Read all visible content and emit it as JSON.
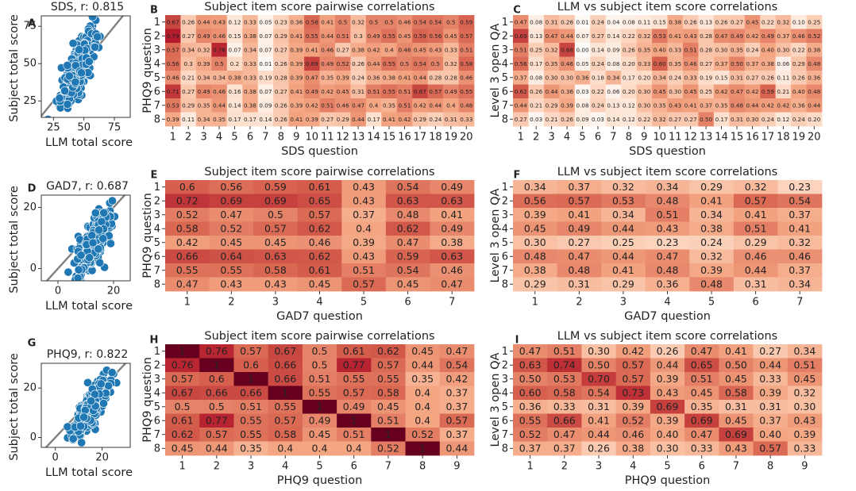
{
  "chart_data": [
    {
      "panel": "A",
      "type": "scatter",
      "title": "SDS, r: 0.815",
      "xlabel": "LLM total score",
      "ylabel": "Subject total score",
      "xlim": [
        15,
        88
      ],
      "ylim": [
        14,
        82
      ],
      "xticks": [
        25,
        50,
        75
      ],
      "yticks": [
        25,
        50,
        75
      ],
      "identity_line": true,
      "point_color": "#1f77b4",
      "cluster": {
        "x_center": 45,
        "x_spread": 7,
        "y_center": 47,
        "y_spread": 13,
        "r": 0.815
      }
    },
    {
      "panel": "D",
      "type": "scatter",
      "title": "GAD7, r: 0.687",
      "xlabel": "LLM total score",
      "ylabel": "Subject total score",
      "xlim": [
        -6,
        26
      ],
      "ylim": [
        -4,
        24
      ],
      "xticks": [
        0,
        20
      ],
      "yticks": [
        0,
        20
      ],
      "identity_line": true,
      "point_color": "#1f77b4",
      "cluster": {
        "x_center": 13,
        "x_spread": 3,
        "y_center": 9,
        "y_spread": 5,
        "r": 0.687
      }
    },
    {
      "panel": "G",
      "type": "scatter",
      "title": "PHQ9, r: 0.822",
      "xlabel": "LLM total score",
      "ylabel": "Subject total score",
      "xlim": [
        -6,
        32
      ],
      "ylim": [
        -4,
        30
      ],
      "xticks": [
        0,
        20
      ],
      "yticks": [
        0,
        20
      ],
      "identity_line": true,
      "point_color": "#1f77b4",
      "cluster": {
        "x_center": 16,
        "x_spread": 4,
        "y_center": 13,
        "y_spread": 6,
        "r": 0.822
      }
    },
    {
      "panel": "B",
      "type": "heatmap",
      "title": "Subject item score pairwise correlations",
      "xlabel": "SDS question",
      "ylabel": "PHQ9 question",
      "x_categories": [
        "1",
        "2",
        "3",
        "4",
        "5",
        "6",
        "7",
        "8",
        "9",
        "10",
        "11",
        "12",
        "13",
        "14",
        "15",
        "16",
        "17",
        "18",
        "19",
        "20"
      ],
      "y_categories": [
        "1",
        "2",
        "3",
        "4",
        "5",
        "6",
        "7",
        "8"
      ],
      "values": [
        [
          "0.67",
          "0.26",
          "0.44",
          "0.43",
          "0.12",
          "0.33",
          "0.05",
          "0.23",
          "0.36",
          "0.58",
          "0.41",
          "0.5",
          "0.32",
          "0.5",
          "0.5",
          "0.46",
          "0.54",
          "0.54",
          "0.5",
          "0.59"
        ],
        [
          "0.79",
          "0.27",
          "0.49",
          "0.46",
          "0.15",
          "0.38",
          "0.07",
          "0.29",
          "0.41",
          "0.55",
          "0.44",
          "0.51",
          "0.3",
          "0.49",
          "0.55",
          "0.45",
          "0.59",
          "0.56",
          "0.45",
          "0.57"
        ],
        [
          "0.57",
          "0.34",
          "0.32",
          "0.76",
          "0.07",
          "0.34",
          "0.07",
          "0.27",
          "0.39",
          "0.41",
          "0.46",
          "0.27",
          "0.38",
          "0.42",
          "0.4",
          "0.48",
          "0.45",
          "0.43",
          "0.33",
          "0.51"
        ],
        [
          "0.56",
          "0.3",
          "0.39",
          "0.5",
          "0.2",
          "0.33",
          "0.01",
          "0.26",
          "0.39",
          "0.69",
          "0.49",
          "0.52",
          "0.26",
          "0.44",
          "0.55",
          "0.5",
          "0.54",
          "0.5",
          "0.32",
          "0.58"
        ],
        [
          "0.46",
          "0.21",
          "0.34",
          "0.34",
          "0.38",
          "0.33",
          "0.19",
          "0.28",
          "0.39",
          "0.47",
          "0.35",
          "0.39",
          "0.24",
          "0.36",
          "0.38",
          "0.41",
          "0.44",
          "0.28",
          "0.28",
          "0.46"
        ],
        [
          "0.71",
          "0.27",
          "0.49",
          "0.46",
          "0.16",
          "0.38",
          "0.07",
          "0.27",
          "0.41",
          "0.49",
          "0.42",
          "0.45",
          "0.31",
          "0.51",
          "0.55",
          "0.51",
          "0.67",
          "0.57",
          "0.49",
          "0.55"
        ],
        [
          "0.53",
          "0.29",
          "0.35",
          "0.44",
          "0.14",
          "0.38",
          "0.09",
          "0.26",
          "0.39",
          "0.42",
          "0.51",
          "0.46",
          "0.47",
          "0.4",
          "0.35",
          "0.51",
          "0.42",
          "0.44",
          "0.4",
          "0.48"
        ],
        [
          "0.39",
          "0.11",
          "0.34",
          "0.35",
          "0.17",
          "0.17",
          "0.14",
          "0.26",
          "0.41",
          "0.39",
          "0.27",
          "0.29",
          "0.44",
          "0.17",
          "0.41",
          "0.42",
          "0.29",
          "0.24",
          "0.31",
          "0.33"
        ]
      ],
      "value_range": [
        -1,
        1
      ],
      "colormap": "RdGy_r"
    },
    {
      "panel": "C",
      "type": "heatmap",
      "title": "LLM vs subject item score correlations",
      "xlabel": "SDS question",
      "ylabel": "Level 3 open QA",
      "x_categories": [
        "1",
        "2",
        "3",
        "4",
        "5",
        "6",
        "7",
        "8",
        "9",
        "10",
        "11",
        "12",
        "13",
        "14",
        "15",
        "16",
        "17",
        "18",
        "19",
        "20"
      ],
      "y_categories": [
        "1",
        "2",
        "3",
        "4",
        "5",
        "6",
        "7",
        "8"
      ],
      "values": [
        [
          "0.47",
          "0.08",
          "0.31",
          "0.26",
          "0.01",
          "0.24",
          "0.04",
          "0.08",
          "0.11",
          "0.15",
          "0.38",
          "0.26",
          "0.13",
          "0.26",
          "0.27",
          "0.45",
          "0.22",
          "0.32",
          "0.10",
          "0.25"
        ],
        [
          "0.69",
          "0.13",
          "0.47",
          "0.44",
          "0.07",
          "0.27",
          "0.14",
          "0.22",
          "0.32",
          "0.53",
          "0.41",
          "0.43",
          "0.28",
          "0.47",
          "0.49",
          "0.42",
          "0.49",
          "0.37",
          "0.46",
          "0.52"
        ],
        [
          "0.51",
          "0.25",
          "0.32",
          "0.68",
          "0.00",
          "0.14",
          "0.09",
          "0.26",
          "0.35",
          "0.40",
          "0.33",
          "0.51",
          "0.28",
          "0.30",
          "0.35",
          "0.24",
          "0.40",
          "0.30",
          "0.22",
          "0.38"
        ],
        [
          "0.56",
          "0.17",
          "0.35",
          "0.46",
          "0.05",
          "0.24",
          "0.08",
          "0.20",
          "0.33",
          "0.60",
          "0.35",
          "0.46",
          "0.27",
          "0.37",
          "0.50",
          "0.37",
          "0.38",
          "0.06",
          "0.29",
          "0.48"
        ],
        [
          "0.37",
          "0.08",
          "0.30",
          "0.30",
          "0.36",
          "0.18",
          "0.34",
          "0.17",
          "0.20",
          "0.34",
          "0.24",
          "0.33",
          "0.19",
          "0.15",
          "0.31",
          "0.27",
          "0.26",
          "0.11",
          "0.26",
          "0.36"
        ],
        [
          "0.62",
          "0.26",
          "0.44",
          "0.36",
          "0.03",
          "0.22",
          "0.06",
          "0.20",
          "0.30",
          "0.45",
          "0.30",
          "0.45",
          "0.25",
          "0.42",
          "0.47",
          "0.42",
          "0.59",
          "0.21",
          "0.40",
          "0.48"
        ],
        [
          "0.44",
          "0.21",
          "0.29",
          "0.39",
          "0.08",
          "0.24",
          "0.13",
          "0.12",
          "0.30",
          "0.35",
          "0.43",
          "0.41",
          "0.37",
          "0.35",
          "0.48",
          "0.44",
          "0.42",
          "0.42",
          "0.36",
          "0.44"
        ],
        [
          "0.27",
          "0.03",
          "0.21",
          "0.26",
          "0.09",
          "0.03",
          "0.14",
          "0.12",
          "0.22",
          "0.32",
          "0.27",
          "0.27",
          "0.50",
          "0.17",
          "0.31",
          "0.30",
          "0.24",
          "0.12",
          "0.24",
          "0.20"
        ]
      ],
      "value_range": [
        -1,
        1
      ],
      "colormap": "RdGy_r"
    },
    {
      "panel": "E",
      "type": "heatmap",
      "title": "Subject item score pairwise correlations",
      "xlabel": "GAD7 question",
      "ylabel": "PHQ9 question",
      "x_categories": [
        "1",
        "2",
        "3",
        "4",
        "5",
        "6",
        "7"
      ],
      "y_categories": [
        "1",
        "2",
        "3",
        "4",
        "5",
        "6",
        "7",
        "8"
      ],
      "values": [
        [
          "0.6",
          "0.56",
          "0.59",
          "0.61",
          "0.43",
          "0.54",
          "0.49"
        ],
        [
          "0.72",
          "0.69",
          "0.69",
          "0.65",
          "0.43",
          "0.63",
          "0.63"
        ],
        [
          "0.52",
          "0.47",
          "0.5",
          "0.57",
          "0.37",
          "0.48",
          "0.41"
        ],
        [
          "0.58",
          "0.52",
          "0.57",
          "0.62",
          "0.4",
          "0.62",
          "0.49"
        ],
        [
          "0.42",
          "0.45",
          "0.45",
          "0.46",
          "0.39",
          "0.47",
          "0.38"
        ],
        [
          "0.66",
          "0.64",
          "0.63",
          "0.62",
          "0.43",
          "0.59",
          "0.63"
        ],
        [
          "0.55",
          "0.55",
          "0.58",
          "0.61",
          "0.51",
          "0.54",
          "0.46"
        ],
        [
          "0.47",
          "0.43",
          "0.43",
          "0.45",
          "0.57",
          "0.45",
          "0.47"
        ]
      ],
      "value_range": [
        -1,
        1
      ],
      "colormap": "RdGy_r"
    },
    {
      "panel": "F",
      "type": "heatmap",
      "title": "LLM vs subject item score correlations",
      "xlabel": "GAD7 question",
      "ylabel": "Level 3 open QA",
      "x_categories": [
        "1",
        "2",
        "3",
        "4",
        "5",
        "6",
        "7"
      ],
      "y_categories": [
        "1",
        "2",
        "3",
        "4",
        "5",
        "6",
        "7",
        "8"
      ],
      "values": [
        [
          "0.34",
          "0.37",
          "0.32",
          "0.34",
          "0.29",
          "0.32",
          "0.23"
        ],
        [
          "0.56",
          "0.57",
          "0.53",
          "0.48",
          "0.41",
          "0.57",
          "0.54"
        ],
        [
          "0.39",
          "0.41",
          "0.34",
          "0.51",
          "0.34",
          "0.41",
          "0.37"
        ],
        [
          "0.45",
          "0.49",
          "0.44",
          "0.43",
          "0.38",
          "0.51",
          "0.41"
        ],
        [
          "0.30",
          "0.27",
          "0.25",
          "0.23",
          "0.24",
          "0.29",
          "0.32"
        ],
        [
          "0.48",
          "0.47",
          "0.44",
          "0.47",
          "0.32",
          "0.46",
          "0.46"
        ],
        [
          "0.38",
          "0.48",
          "0.41",
          "0.48",
          "0.39",
          "0.44",
          "0.37"
        ],
        [
          "0.29",
          "0.31",
          "0.29",
          "0.36",
          "0.48",
          "0.31",
          "0.34"
        ]
      ],
      "value_range": [
        -1,
        1
      ],
      "colormap": "RdGy_r"
    },
    {
      "panel": "H",
      "type": "heatmap",
      "title": "Subject item score pairwise correlations",
      "xlabel": "PHQ9 question",
      "ylabel": "PHQ9 question",
      "x_categories": [
        "1",
        "2",
        "3",
        "4",
        "5",
        "6",
        "7",
        "8",
        "9"
      ],
      "y_categories": [
        "1",
        "2",
        "3",
        "4",
        "5",
        "6",
        "7",
        "8"
      ],
      "values": [
        [
          "1",
          "0.76",
          "0.57",
          "0.67",
          "0.5",
          "0.61",
          "0.62",
          "0.45",
          "0.47"
        ],
        [
          "0.76",
          "1",
          "0.6",
          "0.66",
          "0.5",
          "0.77",
          "0.57",
          "0.44",
          "0.54"
        ],
        [
          "0.57",
          "0.6",
          "1",
          "0.66",
          "0.51",
          "0.55",
          "0.55",
          "0.35",
          "0.42"
        ],
        [
          "0.67",
          "0.66",
          "0.66",
          "1",
          "0.55",
          "0.57",
          "0.58",
          "0.4",
          "0.37"
        ],
        [
          "0.5",
          "0.5",
          "0.51",
          "0.55",
          "1",
          "0.49",
          "0.45",
          "0.4",
          "0.37"
        ],
        [
          "0.61",
          "0.77",
          "0.55",
          "0.57",
          "0.49",
          "1",
          "0.51",
          "0.4",
          "0.57"
        ],
        [
          "0.62",
          "0.57",
          "0.55",
          "0.58",
          "0.45",
          "0.51",
          "1",
          "0.52",
          "0.37"
        ],
        [
          "0.45",
          "0.44",
          "0.35",
          "0.4",
          "0.4",
          "0.4",
          "0.52",
          "1",
          "0.44"
        ]
      ],
      "value_range": [
        -1,
        1
      ],
      "colormap": "RdGy_r"
    },
    {
      "panel": "I",
      "type": "heatmap",
      "title": "LLM vs subject item score correlations",
      "xlabel": "PHQ9 question",
      "ylabel": "Level 3 open QA",
      "x_categories": [
        "1",
        "2",
        "3",
        "4",
        "5",
        "6",
        "7",
        "8",
        "9"
      ],
      "y_categories": [
        "1",
        "2",
        "3",
        "4",
        "5",
        "6",
        "7",
        "8"
      ],
      "values": [
        [
          "0.47",
          "0.51",
          "0.30",
          "0.42",
          "0.26",
          "0.47",
          "0.41",
          "0.27",
          "0.34"
        ],
        [
          "0.63",
          "0.74",
          "0.50",
          "0.57",
          "0.44",
          "0.65",
          "0.50",
          "0.44",
          "0.51"
        ],
        [
          "0.50",
          "0.53",
          "0.70",
          "0.57",
          "0.39",
          "0.51",
          "0.45",
          "0.33",
          "0.45"
        ],
        [
          "0.60",
          "0.58",
          "0.54",
          "0.73",
          "0.43",
          "0.45",
          "0.58",
          "0.39",
          "0.32"
        ],
        [
          "0.36",
          "0.33",
          "0.31",
          "0.39",
          "0.69",
          "0.35",
          "0.31",
          "0.31",
          "0.30"
        ],
        [
          "0.55",
          "0.66",
          "0.41",
          "0.52",
          "0.39",
          "0.69",
          "0.45",
          "0.37",
          "0.43"
        ],
        [
          "0.52",
          "0.47",
          "0.44",
          "0.46",
          "0.40",
          "0.47",
          "0.69",
          "0.40",
          "0.39"
        ],
        [
          "0.37",
          "0.37",
          "0.26",
          "0.38",
          "0.30",
          "0.33",
          "0.43",
          "0.57",
          "0.33"
        ]
      ],
      "value_range": [
        -1,
        1
      ],
      "colormap": "RdGy_r"
    }
  ]
}
